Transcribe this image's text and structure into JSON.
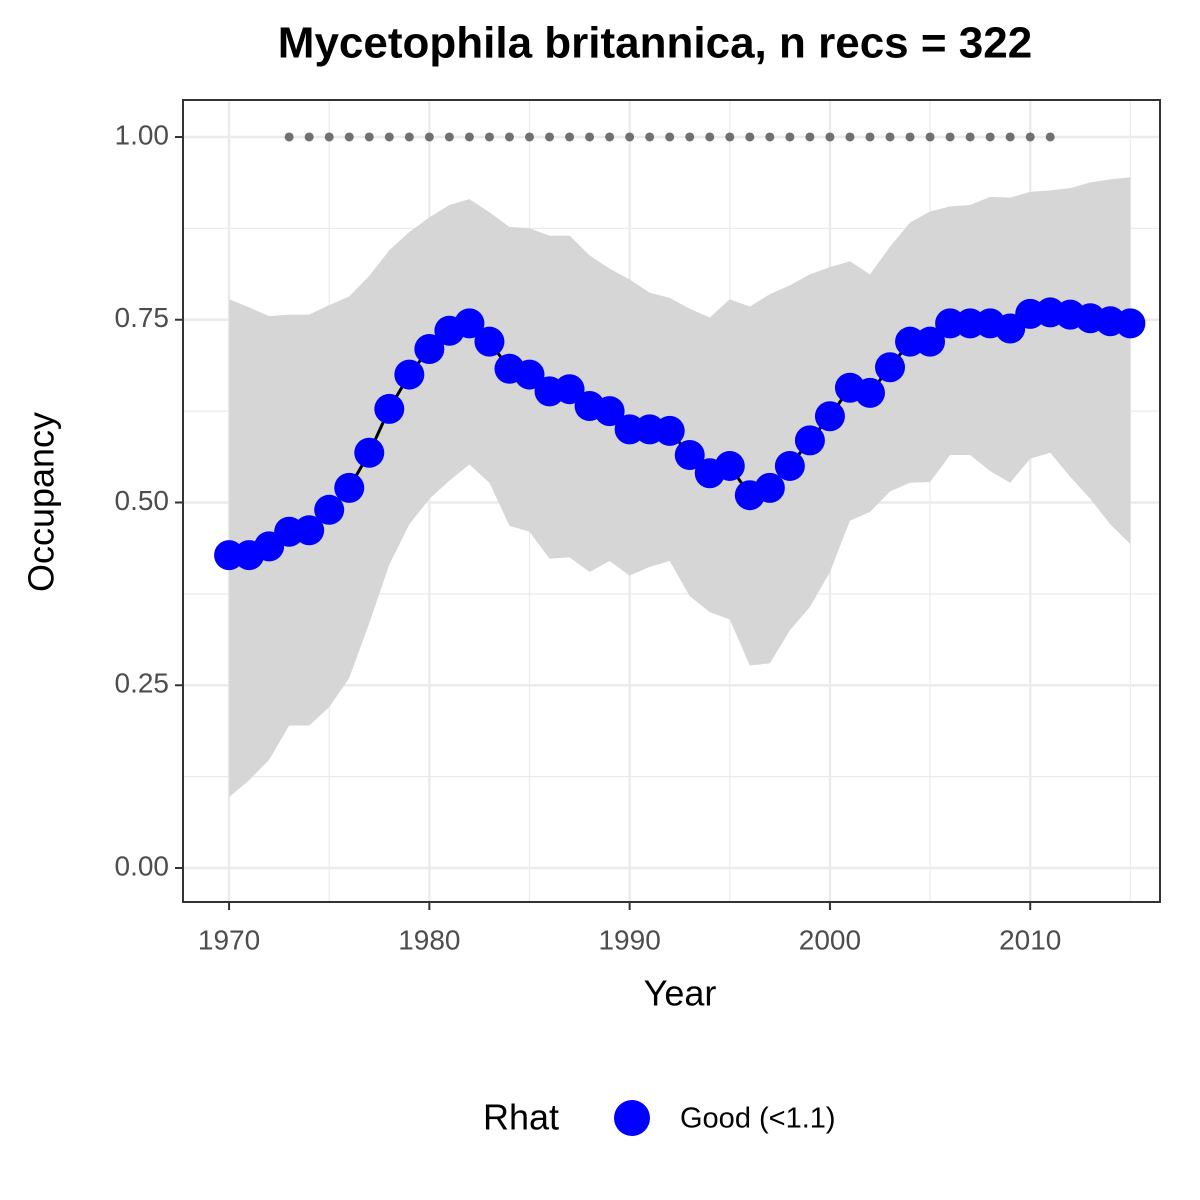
{
  "chart_data": {
    "type": "line",
    "title": "Mycetophila britannica, n recs = 322",
    "x_label": "Year",
    "y_label": "Occupancy",
    "x": [
      1970,
      1971,
      1972,
      1973,
      1974,
      1975,
      1976,
      1977,
      1978,
      1979,
      1980,
      1981,
      1982,
      1983,
      1984,
      1985,
      1986,
      1987,
      1988,
      1989,
      1990,
      1991,
      1992,
      1993,
      1994,
      1995,
      1996,
      1997,
      1998,
      1999,
      2000,
      2001,
      2002,
      2003,
      2004,
      2005,
      2006,
      2007,
      2008,
      2009,
      2010,
      2011,
      2012,
      2013,
      2014,
      2015
    ],
    "series": [
      {
        "name": "Good (<1.1)",
        "color": "#0000ff",
        "values": [
          0.428,
          0.428,
          0.44,
          0.46,
          0.462,
          0.49,
          0.52,
          0.568,
          0.628,
          0.675,
          0.71,
          0.735,
          0.745,
          0.72,
          0.683,
          0.675,
          0.652,
          0.655,
          0.632,
          0.625,
          0.6,
          0.6,
          0.598,
          0.565,
          0.54,
          0.55,
          0.51,
          0.52,
          0.55,
          0.585,
          0.618,
          0.657,
          0.65,
          0.685,
          0.72,
          0.72,
          0.745,
          0.745,
          0.745,
          0.738,
          0.758,
          0.76,
          0.757,
          0.752,
          0.748,
          0.745
        ]
      }
    ],
    "ribbon": {
      "color": "#d6d6d6",
      "upper": [
        0.778,
        0.767,
        0.755,
        0.757,
        0.757,
        0.77,
        0.782,
        0.81,
        0.845,
        0.87,
        0.89,
        0.907,
        0.915,
        0.897,
        0.877,
        0.875,
        0.865,
        0.865,
        0.838,
        0.82,
        0.805,
        0.787,
        0.78,
        0.765,
        0.753,
        0.778,
        0.768,
        0.785,
        0.797,
        0.812,
        0.822,
        0.83,
        0.812,
        0.85,
        0.883,
        0.898,
        0.905,
        0.907,
        0.918,
        0.917,
        0.925,
        0.927,
        0.93,
        0.938,
        0.942,
        0.945
      ],
      "lower": [
        0.097,
        0.12,
        0.148,
        0.195,
        0.195,
        0.22,
        0.26,
        0.335,
        0.415,
        0.47,
        0.505,
        0.53,
        0.552,
        0.527,
        0.468,
        0.46,
        0.423,
        0.425,
        0.405,
        0.42,
        0.4,
        0.412,
        0.42,
        0.372,
        0.35,
        0.34,
        0.277,
        0.28,
        0.325,
        0.357,
        0.405,
        0.475,
        0.487,
        0.515,
        0.527,
        0.528,
        0.565,
        0.565,
        0.543,
        0.527,
        0.56,
        0.568,
        0.535,
        0.505,
        0.47,
        0.443
      ]
    },
    "records": {
      "color": "#707070",
      "x": [
        1973,
        1974,
        1975,
        1976,
        1977,
        1978,
        1979,
        1980,
        1981,
        1982,
        1983,
        1984,
        1985,
        1986,
        1987,
        1988,
        1989,
        1990,
        1991,
        1992,
        1993,
        1994,
        1995,
        1996,
        1997,
        1998,
        1999,
        2000,
        2001,
        2002,
        2003,
        2004,
        2005,
        2006,
        2007,
        2008,
        2009,
        2010,
        2011
      ],
      "values": [
        1,
        1,
        1,
        1,
        1,
        1,
        1,
        1,
        1,
        1,
        1,
        1,
        1,
        1,
        1,
        1,
        1,
        1,
        1,
        1,
        1,
        1,
        1,
        1,
        1,
        1,
        1,
        1,
        1,
        1,
        1,
        1,
        1,
        1,
        1,
        1,
        1,
        1,
        1
      ]
    },
    "xlim": [
      1967.7,
      2016.48
    ],
    "ylim": [
      -0.0465,
      1.0506
    ],
    "xticks": [
      1970,
      1980,
      1990,
      2000,
      2010
    ],
    "yticks": [
      {
        "value": 0,
        "label": "0.00"
      },
      {
        "value": 0.25,
        "label": "0.25"
      },
      {
        "value": 0.5,
        "label": "0.50"
      },
      {
        "value": 0.75,
        "label": "0.75"
      },
      {
        "value": 1,
        "label": "1.00"
      }
    ],
    "x_minor_ticks": [
      1975,
      1985,
      1995,
      2005,
      2015
    ],
    "y_minor_ticks": [
      0.125,
      0.375,
      0.625,
      0.875
    ],
    "grid": true,
    "legend_title": "Rhat",
    "legend_position": "bottom"
  }
}
